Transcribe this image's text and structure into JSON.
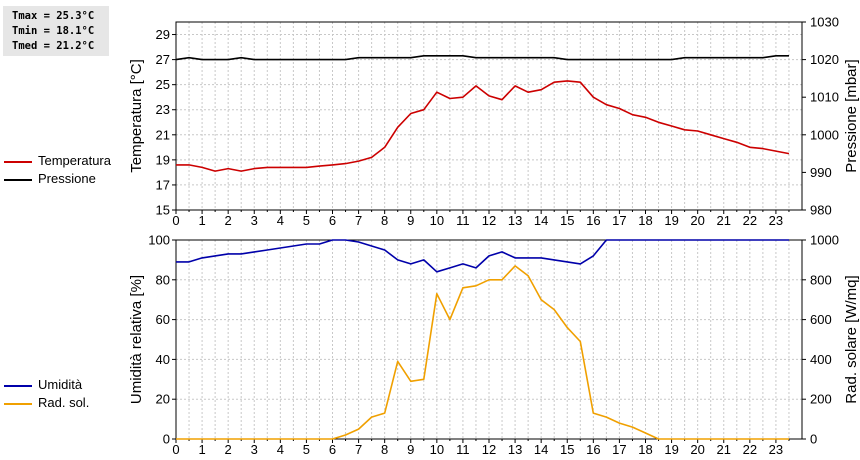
{
  "stats": {
    "tmax": "Tmax = 25.3°C",
    "tmin": "Tmin = 18.1°C",
    "tmed": "Tmed = 21.2°C"
  },
  "colors": {
    "temperature": "#cc0000",
    "pressure": "#000000",
    "humidity": "#0000aa",
    "radiation": "#f0a000"
  },
  "chart_data": [
    {
      "type": "line",
      "xlim": [
        0,
        24
      ],
      "x_ticks": [
        "0",
        "1",
        "2",
        "3",
        "4",
        "5",
        "6",
        "7",
        "8",
        "9",
        "10",
        "11",
        "12",
        "13",
        "14",
        "15",
        "16",
        "17",
        "18",
        "19",
        "20",
        "21",
        "22",
        "23"
      ],
      "grid": true,
      "legend_position": "left",
      "left_axis": {
        "label": "Temperatura [°C]",
        "ylim": [
          15,
          30
        ],
        "ticks": [
          "15",
          "17",
          "19",
          "21",
          "23",
          "25",
          "27",
          "29"
        ]
      },
      "right_axis": {
        "label": "Pressione [mbar]",
        "ylim": [
          980,
          1030
        ],
        "ticks": [
          "980",
          "990",
          "1000",
          "1010",
          "1020",
          "1030"
        ]
      },
      "series": [
        {
          "name": "Temperatura",
          "axis": "left",
          "x": [
            0,
            0.5,
            1,
            1.5,
            2,
            2.5,
            3,
            3.5,
            4,
            4.5,
            5,
            5.5,
            6,
            6.5,
            7,
            7.5,
            8,
            8.5,
            9,
            9.5,
            10,
            10.5,
            11,
            11.5,
            12,
            12.5,
            13,
            13.5,
            14,
            14.5,
            15,
            15.5,
            16,
            16.5,
            17,
            17.5,
            18,
            18.5,
            19,
            19.5,
            20,
            20.5,
            21,
            21.5,
            22,
            22.5,
            23,
            23.5
          ],
          "y": [
            18.6,
            18.6,
            18.4,
            18.1,
            18.3,
            18.1,
            18.3,
            18.4,
            18.4,
            18.4,
            18.4,
            18.5,
            18.6,
            18.7,
            18.9,
            19.2,
            20.0,
            21.6,
            22.7,
            23.0,
            24.4,
            23.9,
            24.0,
            24.9,
            24.1,
            23.8,
            24.9,
            24.4,
            24.6,
            25.2,
            25.3,
            25.2,
            24.0,
            23.4,
            23.1,
            22.6,
            22.4,
            22.0,
            21.7,
            21.4,
            21.3,
            21.0,
            20.7,
            20.4,
            20.0,
            19.9,
            19.7,
            19.5
          ]
        },
        {
          "name": "Pressione",
          "axis": "right",
          "x": [
            0,
            0.5,
            1,
            1.5,
            2,
            2.5,
            3,
            3.5,
            4,
            4.5,
            5,
            5.5,
            6,
            6.5,
            7,
            7.5,
            8,
            8.5,
            9,
            9.5,
            10,
            10.5,
            11,
            11.5,
            12,
            12.5,
            13,
            13.5,
            14,
            14.5,
            15,
            15.5,
            16,
            16.5,
            17,
            17.5,
            18,
            18.5,
            19,
            19.5,
            20,
            20.5,
            21,
            21.5,
            22,
            22.5,
            23,
            23.5
          ],
          "y": [
            1020,
            1020.5,
            1020,
            1020,
            1020,
            1020.5,
            1020,
            1020,
            1020,
            1020,
            1020,
            1020,
            1020,
            1020,
            1020.5,
            1020.5,
            1020.5,
            1020.5,
            1020.5,
            1021,
            1021,
            1021,
            1021,
            1020.5,
            1020.5,
            1020.5,
            1020.5,
            1020.5,
            1020.5,
            1020.5,
            1020,
            1020,
            1020,
            1020,
            1020,
            1020,
            1020,
            1020,
            1020,
            1020.5,
            1020.5,
            1020.5,
            1020.5,
            1020.5,
            1020.5,
            1020.5,
            1021,
            1021
          ]
        }
      ]
    },
    {
      "type": "line",
      "xlim": [
        0,
        24
      ],
      "x_ticks": [
        "0",
        "1",
        "2",
        "3",
        "4",
        "5",
        "6",
        "7",
        "8",
        "9",
        "10",
        "11",
        "12",
        "13",
        "14",
        "15",
        "16",
        "17",
        "18",
        "19",
        "20",
        "21",
        "22",
        "23"
      ],
      "grid": true,
      "legend_position": "left",
      "left_axis": {
        "label": "Umidità relativa [%]",
        "ylim": [
          0,
          100
        ],
        "ticks": [
          "0",
          "20",
          "40",
          "60",
          "80",
          "100"
        ]
      },
      "right_axis": {
        "label": "Rad. solare [W/mq]",
        "ylim": [
          0,
          1000
        ],
        "ticks": [
          "0",
          "200",
          "400",
          "600",
          "800",
          "1000"
        ]
      },
      "series": [
        {
          "name": "Umidità",
          "axis": "left",
          "x": [
            0,
            0.5,
            1,
            1.5,
            2,
            2.5,
            3,
            3.5,
            4,
            4.5,
            5,
            5.5,
            6,
            6.5,
            7,
            7.5,
            8,
            8.5,
            9,
            9.5,
            10,
            10.5,
            11,
            11.5,
            12,
            12.5,
            13,
            13.5,
            14,
            14.5,
            15,
            15.5,
            16,
            16.5,
            17,
            23.5
          ],
          "y": [
            89,
            89,
            91,
            92,
            93,
            93,
            94,
            95,
            96,
            97,
            98,
            98,
            100,
            100,
            99,
            97,
            95,
            90,
            88,
            90,
            84,
            86,
            88,
            86,
            92,
            94,
            91,
            91,
            91,
            90,
            89,
            88,
            92,
            100,
            100,
            100
          ]
        },
        {
          "name": "Rad. sol.",
          "axis": "right",
          "x": [
            0,
            6,
            6.5,
            7,
            7.5,
            8,
            8.5,
            9,
            9.5,
            10,
            10.5,
            11,
            11.5,
            12,
            12.5,
            13,
            13.5,
            14,
            14.5,
            15,
            15.5,
            16,
            16.5,
            17,
            17.5,
            18,
            18.5,
            23.5
          ],
          "y": [
            0,
            0,
            20,
            50,
            110,
            130,
            390,
            290,
            300,
            730,
            600,
            760,
            770,
            800,
            800,
            870,
            820,
            700,
            650,
            560,
            490,
            130,
            110,
            80,
            60,
            30,
            0,
            0
          ]
        }
      ]
    }
  ]
}
